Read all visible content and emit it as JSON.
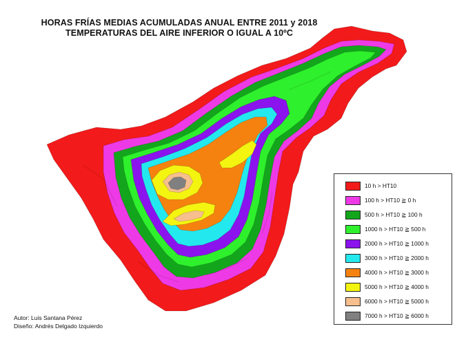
{
  "title_lines": [
    "HORAS FRÍAS MEDIAS ACUMULADAS ANUAL  ENTRE 2011 y 2018",
    "TEMPERATURAS DEL AIRE INFERIOR O IGUAL A 10ºC"
  ],
  "legend": [
    {
      "label": "10 h > HT10",
      "color": "#f21a1a"
    },
    {
      "label": "100 h > HT10 ≧ 0 h",
      "color": "#ee3ae6"
    },
    {
      "label": "500 h > HT10 ≧ 100 h",
      "color": "#13a61c"
    },
    {
      "label": "1000 h > HT10 ≧ 500 h",
      "color": "#2ef02c"
    },
    {
      "label": "2000 h > HT10 ≧ 1000 h",
      "color": "#8b13ee"
    },
    {
      "label": "3000 h > HT10 ≧ 2000 h",
      "color": "#23e9ee"
    },
    {
      "label": "4000 h > HT10 ≧ 3000 h",
      "color": "#f5820f"
    },
    {
      "label": "5000 h > HT10 ≧ 4000 h",
      "color": "#f4f411"
    },
    {
      "label": "6000 h > HT10 ≧ 5000 h",
      "color": "#f7bf8e"
    },
    {
      "label": "7000 h > HT10 ≧ 6000 h",
      "color": "#808080"
    }
  ],
  "credits": {
    "author": "Autor: Luis Santana Pérez",
    "design": "Diseño: Andrés Delgado Izquierdo"
  }
}
